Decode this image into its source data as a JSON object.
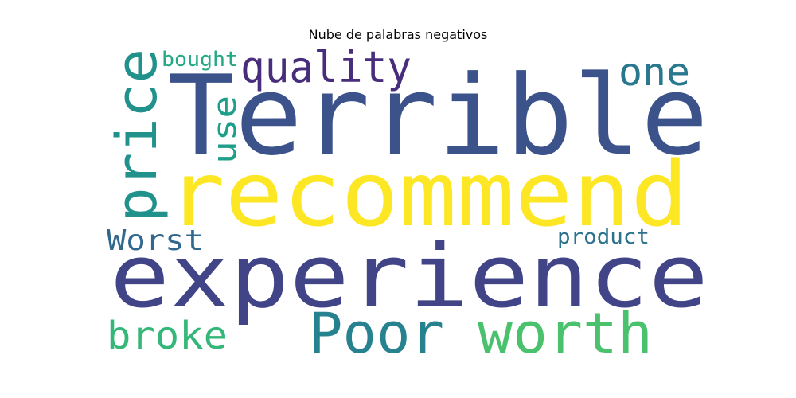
{
  "title": "Nube de palabras negativos",
  "words": [
    {
      "key": "terrible",
      "text": "Terrible",
      "color": "#3b528b"
    },
    {
      "key": "recommend",
      "text": "recommend",
      "color": "#fde725"
    },
    {
      "key": "experience",
      "text": "experience",
      "color": "#414487"
    },
    {
      "key": "quality",
      "text": "quality",
      "color": "#472d7b"
    },
    {
      "key": "price",
      "text": "price",
      "color": "#21918c"
    },
    {
      "key": "one",
      "text": "one",
      "color": "#2a788e"
    },
    {
      "key": "bought",
      "text": "bought",
      "color": "#22a884"
    },
    {
      "key": "use",
      "text": "use",
      "color": "#1f9e89"
    },
    {
      "key": "worst",
      "text": "Worst",
      "color": "#31688e"
    },
    {
      "key": "product",
      "text": "product",
      "color": "#2c728e"
    },
    {
      "key": "broke",
      "text": "broke",
      "color": "#35b779"
    },
    {
      "key": "poor",
      "text": "Poor",
      "color": "#26828e"
    },
    {
      "key": "worth",
      "text": "worth",
      "color": "#4ac16d"
    }
  ]
}
